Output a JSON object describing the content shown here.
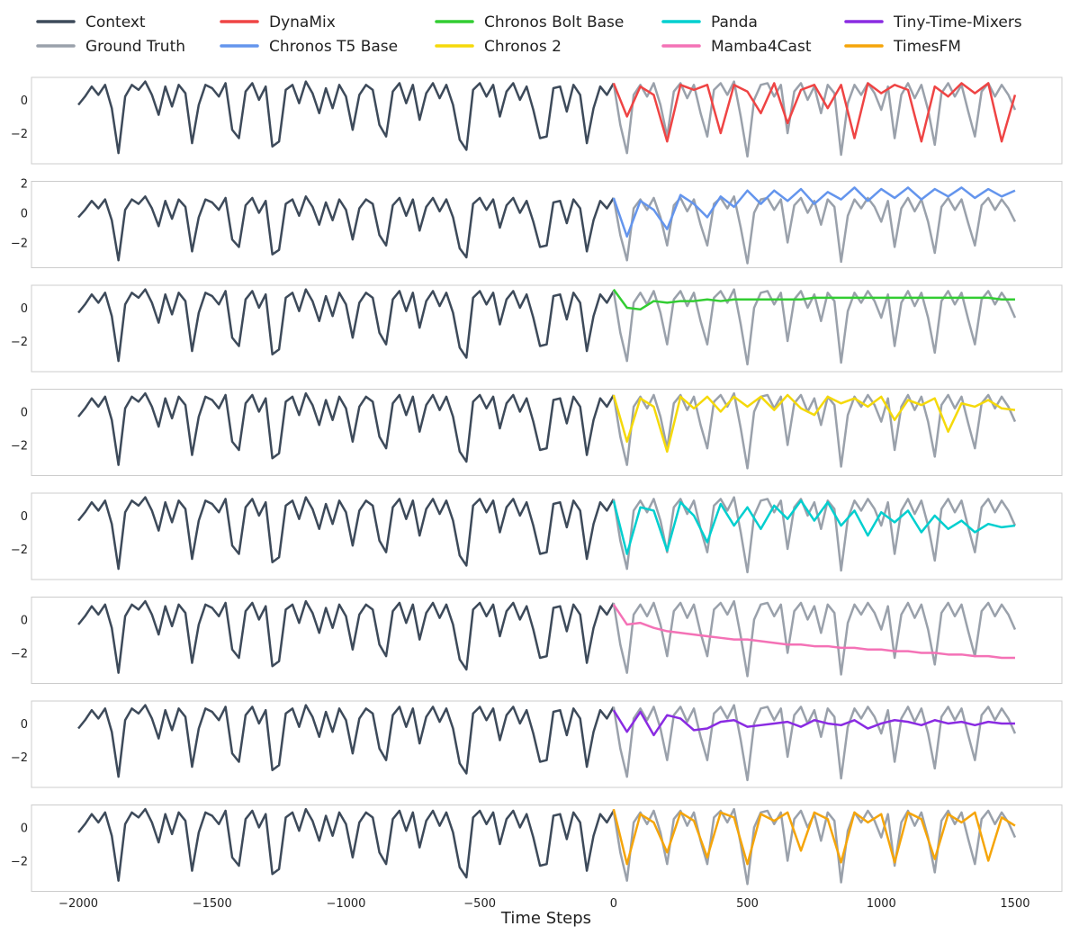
{
  "chart_data": {
    "type": "line",
    "xlabel": "Time Steps",
    "grid": false,
    "xlim": [
      -2175,
      1675
    ],
    "xticks": [
      {
        "value": -2000,
        "label": "−2000"
      },
      {
        "value": -1500,
        "label": "−1500"
      },
      {
        "value": -1000,
        "label": "−1000"
      },
      {
        "value": -500,
        "label": "−500"
      },
      0,
      500,
      1000,
      1500
    ],
    "context": {
      "name": "Context",
      "color": "#3d4a5a",
      "x": [
        -2000,
        -1975,
        -1950,
        -1925,
        -1900,
        -1875,
        -1850,
        -1825,
        -1800,
        -1775,
        -1750,
        -1725,
        -1700,
        -1675,
        -1650,
        -1625,
        -1600,
        -1575,
        -1550,
        -1525,
        -1500,
        -1475,
        -1450,
        -1425,
        -1400,
        -1375,
        -1350,
        -1325,
        -1300,
        -1275,
        -1250,
        -1225,
        -1200,
        -1175,
        -1150,
        -1125,
        -1100,
        -1075,
        -1050,
        -1025,
        -1000,
        -975,
        -950,
        -925,
        -900,
        -875,
        -850,
        -825,
        -800,
        -775,
        -750,
        -725,
        -700,
        -675,
        -650,
        -625,
        -600,
        -575,
        -550,
        -525,
        -500,
        -475,
        -450,
        -425,
        -400,
        -375,
        -350,
        -325,
        -300,
        -275,
        -250,
        -225,
        -200,
        -175,
        -150,
        -125,
        -100,
        -75,
        -50,
        -25,
        0
      ],
      "values": [
        -0.3,
        0.2,
        0.8,
        0.3,
        0.9,
        -0.5,
        -3.2,
        0.2,
        0.9,
        0.6,
        1.1,
        0.3,
        -0.9,
        0.8,
        -0.4,
        0.9,
        0.4,
        -2.6,
        -0.3,
        0.9,
        0.7,
        0.2,
        1.0,
        -1.8,
        -2.3,
        0.5,
        1.0,
        0.0,
        0.8,
        -2.8,
        -2.5,
        0.6,
        0.9,
        -0.2,
        1.1,
        0.4,
        -0.8,
        0.7,
        -0.5,
        0.9,
        0.2,
        -1.8,
        0.3,
        0.9,
        0.6,
        -1.5,
        -2.2,
        0.5,
        1.0,
        -0.2,
        0.9,
        -1.2,
        0.4,
        1.0,
        0.1,
        0.9,
        -0.3,
        -2.4,
        -3.0,
        0.6,
        1.0,
        0.2,
        0.9,
        -1.0,
        0.5,
        1.0,
        0.0,
        0.8,
        -0.6,
        -2.3,
        -2.2,
        0.7,
        0.8,
        -0.7,
        0.9,
        0.3,
        -2.6,
        -0.5,
        0.8,
        0.3,
        1.0
      ]
    },
    "ground_truth": {
      "name": "Ground Truth",
      "color": "#9aa1ab",
      "x": [
        0,
        25,
        50,
        75,
        100,
        125,
        150,
        175,
        200,
        225,
        250,
        275,
        300,
        325,
        350,
        375,
        400,
        425,
        450,
        475,
        500,
        525,
        550,
        575,
        600,
        625,
        650,
        675,
        700,
        725,
        750,
        775,
        800,
        825,
        850,
        875,
        900,
        925,
        950,
        975,
        1000,
        1025,
        1050,
        1075,
        1100,
        1125,
        1150,
        1175,
        1200,
        1225,
        1250,
        1275,
        1300,
        1325,
        1350,
        1375,
        1400,
        1425,
        1450,
        1475,
        1500
      ],
      "values": [
        1.0,
        -1.5,
        -3.2,
        0.3,
        0.9,
        0.2,
        1.0,
        -0.3,
        -2.2,
        0.5,
        1.0,
        0.1,
        0.9,
        -0.8,
        -2.2,
        0.6,
        1.0,
        0.3,
        1.1,
        -1.0,
        -3.4,
        0.0,
        0.9,
        1.0,
        0.2,
        0.9,
        -2.0,
        0.5,
        1.0,
        0.0,
        0.8,
        -0.8,
        0.9,
        0.4,
        -3.3,
        -0.2,
        0.9,
        0.3,
        1.0,
        0.4,
        -0.6,
        0.8,
        -2.3,
        0.3,
        1.0,
        0.1,
        0.9,
        -0.6,
        -2.7,
        0.4,
        1.0,
        0.2,
        0.9,
        -0.7,
        -2.2,
        0.5,
        1.0,
        0.2,
        0.9,
        0.3,
        -0.6
      ]
    },
    "panels": [
      {
        "ylim": [
          -3.84,
          1.35
        ],
        "yticks": [
          {
            "value": -2,
            "label": "−2"
          },
          0
        ],
        "forecast": {
          "name": "DynaMix",
          "color": "#ef4444",
          "x": [
            0,
            50,
            100,
            150,
            200,
            250,
            300,
            350,
            400,
            450,
            500,
            550,
            600,
            650,
            700,
            750,
            800,
            850,
            900,
            950,
            1000,
            1050,
            1100,
            1150,
            1200,
            1250,
            1300,
            1350,
            1400,
            1450,
            1500
          ],
          "values": [
            1.0,
            -1.0,
            0.8,
            0.3,
            -2.5,
            0.9,
            0.6,
            0.9,
            -2.0,
            0.9,
            0.5,
            -0.8,
            1.0,
            -1.4,
            0.6,
            0.9,
            -0.5,
            0.9,
            -2.3,
            1.0,
            0.4,
            0.9,
            0.6,
            -2.5,
            0.8,
            0.2,
            1.0,
            0.4,
            1.0,
            -2.5,
            0.3
          ]
        }
      },
      {
        "ylim": [
          -3.7,
          2.12
        ],
        "yticks": [
          {
            "value": -2,
            "label": "−2"
          },
          0,
          2
        ],
        "forecast": {
          "name": "Chronos T5 Base",
          "color": "#6495ed",
          "x": [
            0,
            50,
            100,
            150,
            200,
            250,
            300,
            350,
            400,
            450,
            500,
            550,
            600,
            650,
            700,
            750,
            800,
            850,
            900,
            950,
            1000,
            1050,
            1100,
            1150,
            1200,
            1250,
            1300,
            1350,
            1400,
            1450,
            1500
          ],
          "values": [
            1.0,
            -1.6,
            0.8,
            0.2,
            -1.1,
            1.2,
            0.6,
            -0.3,
            1.1,
            0.4,
            1.5,
            0.6,
            1.5,
            0.8,
            1.6,
            0.6,
            1.4,
            0.9,
            1.7,
            0.8,
            1.6,
            1.0,
            1.7,
            0.9,
            1.6,
            1.1,
            1.7,
            1.0,
            1.6,
            1.1,
            1.5
          ]
        }
      },
      {
        "ylim": [
          -3.84,
          1.35
        ],
        "yticks": [
          {
            "value": -2,
            "label": "−2"
          },
          0
        ],
        "forecast": {
          "name": "Chronos Bolt Base",
          "color": "#32cd32",
          "x": [
            0,
            50,
            100,
            150,
            200,
            250,
            300,
            350,
            400,
            450,
            500,
            550,
            600,
            650,
            700,
            750,
            800,
            850,
            900,
            950,
            1000,
            1050,
            1100,
            1150,
            1200,
            1250,
            1300,
            1350,
            1400,
            1450,
            1500
          ],
          "values": [
            1.1,
            0.0,
            -0.1,
            0.4,
            0.3,
            0.4,
            0.4,
            0.5,
            0.4,
            0.5,
            0.5,
            0.5,
            0.5,
            0.5,
            0.5,
            0.6,
            0.6,
            0.6,
            0.6,
            0.6,
            0.6,
            0.6,
            0.6,
            0.6,
            0.6,
            0.6,
            0.6,
            0.6,
            0.6,
            0.5,
            0.5
          ]
        }
      },
      {
        "ylim": [
          -3.84,
          1.35
        ],
        "yticks": [
          {
            "value": -2,
            "label": "−2"
          },
          0
        ],
        "forecast": {
          "name": "Chronos 2",
          "color": "#f5d90a",
          "x": [
            0,
            50,
            100,
            150,
            200,
            250,
            300,
            350,
            400,
            450,
            500,
            550,
            600,
            650,
            700,
            750,
            800,
            850,
            900,
            950,
            1000,
            1050,
            1100,
            1150,
            1200,
            1250,
            1300,
            1350,
            1400,
            1450,
            1500
          ],
          "values": [
            1.0,
            -1.8,
            0.8,
            0.3,
            -2.4,
            0.9,
            0.2,
            0.9,
            0.0,
            0.9,
            0.3,
            0.9,
            0.1,
            1.0,
            0.2,
            -0.2,
            0.9,
            0.5,
            0.8,
            0.3,
            0.9,
            -0.5,
            0.7,
            0.4,
            0.8,
            -1.2,
            0.5,
            0.3,
            0.7,
            0.2,
            0.1
          ]
        }
      },
      {
        "ylim": [
          -3.84,
          1.35
        ],
        "yticks": [
          {
            "value": -2,
            "label": "−2"
          },
          0
        ],
        "forecast": {
          "name": "Panda",
          "color": "#00cfcf",
          "x": [
            0,
            50,
            100,
            150,
            200,
            250,
            300,
            350,
            400,
            450,
            500,
            550,
            600,
            650,
            700,
            750,
            800,
            850,
            900,
            950,
            1000,
            1050,
            1100,
            1150,
            1200,
            1250,
            1300,
            1350,
            1400,
            1450,
            1500
          ],
          "values": [
            0.9,
            -2.3,
            0.5,
            0.3,
            -2.1,
            0.8,
            0.0,
            -1.6,
            0.7,
            -0.6,
            0.5,
            -0.8,
            0.6,
            -0.2,
            0.9,
            -0.3,
            0.8,
            -0.6,
            0.3,
            -1.2,
            0.2,
            -0.4,
            0.3,
            -1.0,
            0.0,
            -0.8,
            -0.3,
            -1.0,
            -0.5,
            -0.7,
            -0.6
          ]
        }
      },
      {
        "ylim": [
          -3.84,
          1.35
        ],
        "yticks": [
          {
            "value": -2,
            "label": "−2"
          },
          0
        ],
        "forecast": {
          "name": "Mamba4Cast",
          "color": "#f472b6",
          "x": [
            0,
            50,
            100,
            150,
            200,
            250,
            300,
            350,
            400,
            450,
            500,
            550,
            600,
            650,
            700,
            750,
            800,
            850,
            900,
            950,
            1000,
            1050,
            1100,
            1150,
            1200,
            1250,
            1300,
            1350,
            1400,
            1450,
            1500
          ],
          "values": [
            0.9,
            -0.3,
            -0.2,
            -0.5,
            -0.7,
            -0.8,
            -0.9,
            -1.0,
            -1.1,
            -1.2,
            -1.2,
            -1.3,
            -1.4,
            -1.5,
            -1.5,
            -1.6,
            -1.6,
            -1.7,
            -1.7,
            -1.8,
            -1.8,
            -1.9,
            -1.9,
            -2.0,
            -2.0,
            -2.1,
            -2.1,
            -2.2,
            -2.2,
            -2.3,
            -2.3
          ]
        }
      },
      {
        "ylim": [
          -3.84,
          1.35
        ],
        "yticks": [
          {
            "value": -2,
            "label": "−2"
          },
          0
        ],
        "forecast": {
          "name": "Tiny-Time-Mixers",
          "color": "#8a2be2",
          "x": [
            0,
            50,
            100,
            150,
            200,
            250,
            300,
            350,
            400,
            450,
            500,
            550,
            600,
            650,
            700,
            750,
            800,
            850,
            900,
            950,
            1000,
            1050,
            1100,
            1150,
            1200,
            1250,
            1300,
            1350,
            1400,
            1450,
            1500
          ],
          "values": [
            0.8,
            -0.5,
            0.7,
            -0.7,
            0.5,
            0.3,
            -0.4,
            -0.3,
            0.1,
            0.2,
            -0.2,
            -0.1,
            0.0,
            0.1,
            -0.2,
            0.2,
            0.0,
            -0.1,
            0.2,
            -0.3,
            0.0,
            0.2,
            0.1,
            -0.1,
            0.2,
            0.0,
            0.1,
            -0.1,
            0.1,
            0.0,
            0.0
          ]
        }
      },
      {
        "ylim": [
          -3.84,
          1.35
        ],
        "yticks": [
          {
            "value": -2,
            "label": "−2"
          },
          0
        ],
        "forecast": {
          "name": "TimesFM",
          "color": "#f5a50a",
          "x": [
            0,
            50,
            100,
            150,
            200,
            250,
            300,
            350,
            400,
            450,
            500,
            550,
            600,
            650,
            700,
            750,
            800,
            850,
            900,
            950,
            1000,
            1050,
            1100,
            1150,
            1200,
            1250,
            1300,
            1350,
            1400,
            1450,
            1500
          ],
          "values": [
            1.1,
            -2.2,
            0.8,
            0.3,
            -1.5,
            0.9,
            0.4,
            -1.8,
            0.9,
            0.6,
            -2.2,
            0.8,
            0.4,
            0.9,
            -1.4,
            0.9,
            0.5,
            -2.1,
            0.9,
            0.3,
            0.8,
            -2.1,
            0.9,
            0.5,
            -1.9,
            0.8,
            0.3,
            0.9,
            -2.0,
            0.6,
            0.1
          ]
        }
      }
    ]
  }
}
